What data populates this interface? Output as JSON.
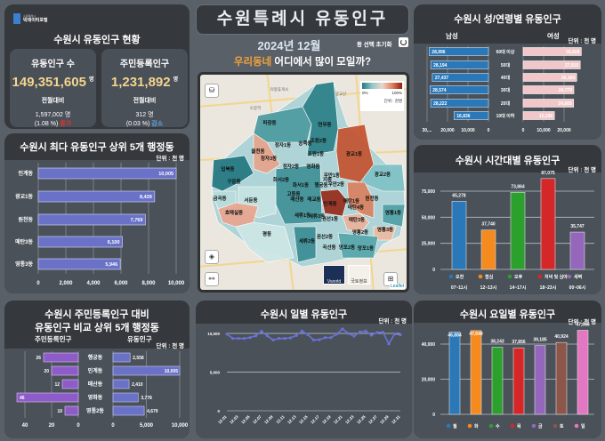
{
  "logo": {
    "line1": "수원특례시",
    "line2": "빅데이터포털"
  },
  "summary": {
    "title": "수원시 유동인구 현황",
    "cards": [
      {
        "label": "유동인구 수",
        "value": "149,351,605",
        "unit": "명",
        "compare_label": "전월대비",
        "diff": "1,597,002",
        "diff_unit": "명",
        "pct": "(1.08 %)",
        "trend": "증가",
        "trend_color": "#e5322d"
      },
      {
        "label": "주민등록인구",
        "value": "1,231,892",
        "unit": "명",
        "compare_label": "전월대비",
        "diff": "312",
        "diff_unit": "명",
        "pct": "(0.03 %)",
        "trend": "감소",
        "trend_color": "#5ea5e6"
      }
    ]
  },
  "header": {
    "title": "수원특례시  유동인구",
    "date": "2024년 12월",
    "reset_label": "동 선택 초기화",
    "question_highlight": "우리동네",
    "question_rest": " 어디에서 많이 모일까?"
  },
  "map": {
    "legend": {
      "min": "0%",
      "max": "100%",
      "unit": "단위 : 천명"
    },
    "districts": [
      "파장동",
      "연무동",
      "정자1동",
      "송죽동",
      "조원2동",
      "율천동",
      "정자3동",
      "조원1동",
      "광교1동",
      "입북동",
      "정자2동",
      "영화동",
      "우만1동",
      "우만2동",
      "광교2동",
      "구운동",
      "화서2동",
      "화서1동",
      "행궁동",
      "지동",
      "금곡동",
      "서둔동",
      "고등동",
      "매산동",
      "매교동",
      "인계동",
      "매탄1동",
      "원천동",
      "매탄4동",
      "호매실동",
      "세류1동",
      "세류3동",
      "권선1동",
      "매탄3동",
      "영통1동",
      "영통3동",
      "평동",
      "세류2동",
      "권선2동",
      "곡선동",
      "영통2동",
      "망포2동",
      "망포1동"
    ],
    "places": [
      "의왕휴게소",
      "오봉역",
      "광교산"
    ],
    "basemaps": [
      "Vworld",
      "국토정보"
    ],
    "attribution": "Leaflet"
  },
  "chart_data": [
    {
      "type": "bar",
      "orientation": "horizontal",
      "title": "수원시 최다 유동인구 상위 5개 행정동",
      "unit": "단위 : 천 명",
      "categories": [
        "인계동",
        "광교1동",
        "원천동",
        "매탄3동",
        "영통3동"
      ],
      "values": [
        10005,
        8439,
        7769,
        6100,
        5946
      ],
      "value_labels": [
        "10,005",
        "8,439",
        "7,769",
        "6,100",
        "5,946"
      ],
      "xlim": [
        0,
        10000
      ],
      "xticks": [
        "0",
        "2,000",
        "4,000",
        "6,000",
        "8,000",
        "10,000"
      ],
      "color": "#6a72c8",
      "grid": true
    },
    {
      "type": "bar",
      "orientation": "horizontal-butterfly",
      "title_line1": "수원시 주민등록인구 대비",
      "title_line2": "유동인구 비교 상위 5개 행정동",
      "unit": "단위 : 천 명",
      "categories": [
        "행궁동",
        "인계동",
        "매산동",
        "영화동",
        "영통2동"
      ],
      "series": [
        {
          "name": "주민등록인구",
          "values": [
            26,
            20,
            12,
            46,
            10
          ],
          "labels": [
            "26",
            "20",
            "12",
            "46",
            "10"
          ],
          "color": "#8e5cc8",
          "xticks": [
            "40",
            "20",
            "0"
          ],
          "xlim": [
            0,
            50
          ]
        },
        {
          "name": "유동인구",
          "values": [
            2558,
            10005,
            2410,
            3778,
            4679
          ],
          "labels": [
            "2,558",
            "10,005",
            "2,410",
            "3,778",
            "4,679"
          ],
          "color": "#6a72c8",
          "xticks": [
            "0",
            "5,000",
            "10,000"
          ],
          "xlim": [
            0,
            10000
          ]
        }
      ]
    },
    {
      "type": "line",
      "title": "수원시 일별 유동인구",
      "unit": "단위 : 천 명",
      "x": [
        "12.01",
        "12.02",
        "12.03",
        "12.04",
        "12.05",
        "12.06",
        "12.07",
        "12.08",
        "12.09",
        "12.10",
        "12.11",
        "12.12",
        "12.13",
        "12.14",
        "12.15",
        "12.16",
        "12.17",
        "12.18",
        "12.19",
        "12.20",
        "12.21",
        "12.22",
        "12.23",
        "12.24",
        "12.25",
        "12.26",
        "12.27",
        "12.28",
        "12.29",
        "12.30",
        "12.31"
      ],
      "xticks": [
        "12.01",
        "12.03",
        "12.05",
        "12.07",
        "12.09",
        "12.11",
        "12.13",
        "12.15",
        "12.17",
        "12.19",
        "12.21",
        "12.23",
        "12.25",
        "12.27",
        "12.29",
        "12.31"
      ],
      "values": [
        9920,
        9350,
        9350,
        9350,
        9460,
        9690,
        10270,
        9690,
        9150,
        9350,
        9350,
        9420,
        9730,
        10310,
        9850,
        9150,
        9190,
        9460,
        9460,
        9920,
        10580,
        10000,
        9650,
        10190,
        10310,
        9770,
        10120,
        10150,
        8650,
        9920,
        9810
      ],
      "ylim": [
        0,
        10000
      ],
      "yticks": [
        "0",
        "5,000",
        "10,000"
      ],
      "color": "#6a72d8",
      "grid": true
    },
    {
      "type": "bar",
      "orientation": "horizontal-butterfly",
      "title": "수원시 성/연령별 유동인구",
      "unit": "단위 : 천 명",
      "categories": [
        "60대 이상",
        "50대",
        "40대",
        "30대",
        "20대",
        "10대 이하"
      ],
      "series": [
        {
          "name": "남성",
          "values": [
            28996,
            28194,
            27437,
            28574,
            28222,
            16836
          ],
          "labels": [
            "28,996",
            "28,194",
            "27,437",
            "28,574",
            "28,222",
            "16,836"
          ],
          "color": "#2a78b8",
          "xticks": [
            "30,...",
            "20,000",
            "10,000",
            "0"
          ]
        },
        {
          "name": "여성",
          "values": [
            28428,
            27910,
            26164,
            24779,
            24665,
            15296
          ],
          "labels": [
            "28,428",
            "27,910",
            "26,164",
            "24,779",
            "24,665",
            "15,296"
          ],
          "color": "#f2c7c9",
          "xticks": [
            "0",
            "10,000",
            "20,000"
          ]
        }
      ]
    },
    {
      "type": "bar",
      "title": "수원시 시간대별 유동인구",
      "unit": "단위 : 천 명",
      "categories": [
        "오전",
        "점심",
        "오후",
        "저녁 및 심야",
        "새벽"
      ],
      "sublabels": [
        "07~11시",
        "12~13시",
        "14~17시",
        "18~23시",
        "00~06시"
      ],
      "values": [
        65278,
        37740,
        73864,
        87075,
        35747
      ],
      "value_labels": [
        "65,278",
        "37,740",
        "73,864",
        "87,075",
        "35,747"
      ],
      "colors": [
        "#2a78b8",
        "#f58a1f",
        "#2ca02c",
        "#d62728",
        "#9467bd"
      ],
      "ylim": [
        0,
        87075
      ],
      "yticks": [
        "0",
        "25,000",
        "50,000",
        "75,000"
      ],
      "grid": true,
      "legend": "bottom"
    },
    {
      "type": "bar",
      "title": "수원시 요일별 유동인구",
      "unit": "단위 : 천 명",
      "categories": [
        "월",
        "화",
        "수",
        "목",
        "금",
        "토",
        "일"
      ],
      "values": [
        46884,
        47649,
        38243,
        37856,
        39185,
        40924,
        47865
      ],
      "value_labels": [
        "46,884",
        "47,649",
        "38,243",
        "37,856",
        "39,185",
        "40,924",
        "47,865"
      ],
      "colors": [
        "#2a78b8",
        "#f58a1f",
        "#2ca02c",
        "#d62728",
        "#9467bd",
        "#8c564b",
        "#e377c2"
      ],
      "ylim": [
        0,
        47865
      ],
      "yticks": [
        "0",
        "20,000",
        "40,000"
      ],
      "grid": true,
      "legend": "bottom"
    }
  ]
}
